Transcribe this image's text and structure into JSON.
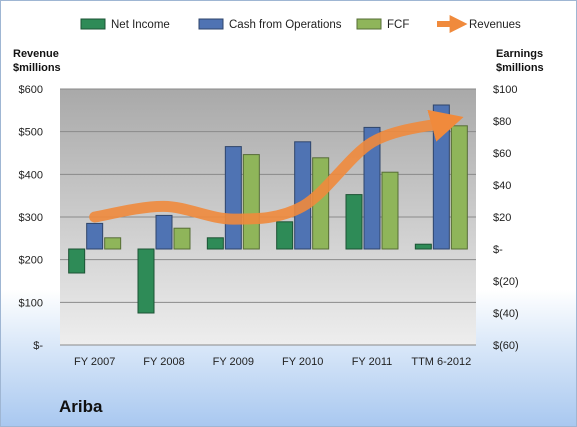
{
  "company_label": "Ariba",
  "chart_data": {
    "type": "bar",
    "categories": [
      "FY 2007",
      "FY 2008",
      "FY 2009",
      "FY 2010",
      "FY 2011",
      "TTM 6-2012"
    ],
    "series": [
      {
        "name": "Net Income",
        "axis": "right",
        "color": "#2e8b57",
        "values": [
          -15,
          -40,
          7,
          17,
          34,
          3
        ]
      },
      {
        "name": "Cash from Operations",
        "axis": "right",
        "color": "#4f73b3",
        "values": [
          16,
          21,
          64,
          67,
          76,
          90
        ]
      },
      {
        "name": "FCF",
        "axis": "right",
        "color": "#8fb55a",
        "values": [
          7,
          13,
          59,
          57,
          48,
          77
        ]
      },
      {
        "name": "Revenues",
        "axis": "left",
        "type": "line",
        "color": "#f08a3c",
        "values": [
          300,
          325,
          295,
          325,
          475,
          520
        ]
      }
    ],
    "left_axis": {
      "label_line1": "Revenue",
      "label_line2": "$millions",
      "ylim": [
        0,
        600
      ],
      "ticks": [
        0,
        100,
        200,
        300,
        400,
        500,
        600
      ],
      "tick_labels": [
        "$-",
        "$100",
        "$200",
        "$300",
        "$400",
        "$500",
        "$600"
      ]
    },
    "right_axis": {
      "label_line1": "Earnings",
      "label_line2": "$millions",
      "ylim": [
        -60,
        100
      ],
      "ticks": [
        -60,
        -40,
        -20,
        0,
        20,
        40,
        60,
        80,
        100
      ],
      "tick_labels": [
        "$(60)",
        "$(40)",
        "$(20)",
        "$-",
        "$20",
        "$40",
        "$60",
        "$80",
        "$100"
      ]
    },
    "legend_position": "top",
    "grid": true
  }
}
